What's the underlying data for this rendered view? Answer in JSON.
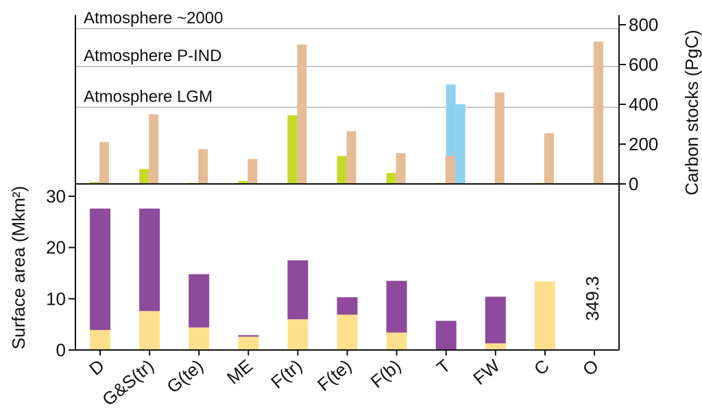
{
  "chart_data": [
    {
      "type": "bar",
      "panel": "top",
      "ylabel": "Carbon stocks (PgC)",
      "yaxis_side": "right",
      "ylim": [
        0,
        800
      ],
      "yticks": [
        0,
        200,
        400,
        600,
        800
      ],
      "categories": [
        "D",
        "G&S(tr)",
        "G(te)",
        "ME",
        "F(tr)",
        "F(te)",
        "F(b)",
        "T",
        "FW",
        "C",
        "O"
      ],
      "series": [
        {
          "color": "#c6d92a",
          "values": [
            10,
            75,
            5,
            15,
            345,
            140,
            55,
            5,
            0,
            5,
            0
          ]
        },
        {
          "color": "#e6bc96",
          "values": [
            210,
            350,
            175,
            125,
            700,
            265,
            155,
            140,
            460,
            255,
            715
          ]
        },
        {
          "color": "#8dd1ef",
          "values": [
            null,
            null,
            null,
            null,
            null,
            null,
            null,
            500,
            null,
            null,
            null
          ],
          "segments": [
            500,
            400
          ]
        }
      ],
      "reference_lines": [
        {
          "label": "Atmosphere ~2000",
          "value": 780
        },
        {
          "label": "Atmosphere P-IND",
          "value": 590
        },
        {
          "label": "Atmosphere LGM",
          "value": 385
        }
      ]
    },
    {
      "type": "bar",
      "panel": "bottom",
      "stacked": true,
      "ylabel": "Surface area (Mkm²)",
      "yaxis_side": "left",
      "ylim": [
        0,
        30
      ],
      "yticks": [
        0,
        10,
        20,
        30
      ],
      "categories": [
        "D",
        "G&S(tr)",
        "G(te)",
        "ME",
        "F(tr)",
        "F(te)",
        "F(b)",
        "T",
        "FW",
        "C",
        "O"
      ],
      "series": [
        {
          "color": "#fde08e",
          "values": [
            3.9,
            7.6,
            4.4,
            2.6,
            6.0,
            6.9,
            3.4,
            0,
            1.3,
            13.4,
            0
          ]
        },
        {
          "color": "#8e4a9c",
          "values": [
            23.7,
            20.0,
            10.4,
            0.3,
            11.5,
            3.4,
            10.1,
            5.7,
            9.1,
            0,
            0
          ]
        }
      ],
      "annotations": [
        {
          "text": "349.3",
          "category": "O"
        }
      ]
    }
  ]
}
